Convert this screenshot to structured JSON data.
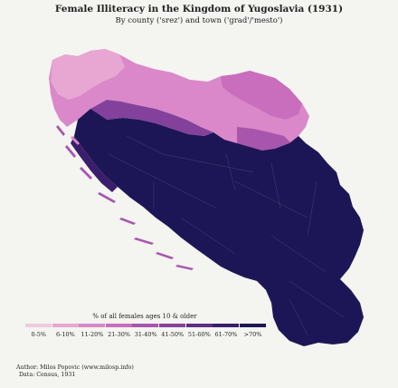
{
  "header": {
    "title": "Female Illiteracy in the Kingdom of Yugoslavia (1931)",
    "subtitle": "By county ('srez') and town ('grad'/'mesto')"
  },
  "legend": {
    "title": "% of all females ages 10 & older",
    "classes": [
      {
        "label": "0-5%",
        "color": "#f1c9e0"
      },
      {
        "label": "6-10%",
        "color": "#e7a7d2"
      },
      {
        "label": "11-20%",
        "color": "#da88c9"
      },
      {
        "label": "21-30%",
        "color": "#c96dbd"
      },
      {
        "label": "31-40%",
        "color": "#a856ad"
      },
      {
        "label": "41-50%",
        "color": "#84419c"
      },
      {
        "label": "51-60%",
        "color": "#5d2d86"
      },
      {
        "label": "61-70%",
        "color": "#3a1e6c"
      },
      {
        "label": ">70%",
        "color": "#1d1656"
      }
    ]
  },
  "credits": {
    "author": "Author: Milos Popovic (www.milosp.info)",
    "data": "Data: Census, 1931"
  }
}
